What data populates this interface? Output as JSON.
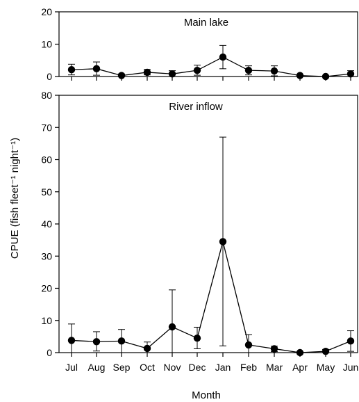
{
  "chart_data": [
    {
      "type": "line",
      "title": "Main lake",
      "xlabel": "",
      "ylabel": "",
      "categories": [
        "Jul",
        "Aug",
        "Sep",
        "Oct",
        "Nov",
        "Dec",
        "Jan",
        "Feb",
        "Mar",
        "Apr",
        "May",
        "Jun"
      ],
      "ylim": [
        0,
        20
      ],
      "yticks": [
        0,
        10,
        20
      ],
      "series": [
        {
          "name": "",
          "values": [
            2.1,
            2.4,
            0.3,
            1.3,
            0.8,
            1.9,
            6.0,
            1.9,
            1.7,
            0.3,
            0.0,
            0.8
          ],
          "error_upper": [
            3.8,
            4.5,
            0.8,
            2.2,
            1.8,
            3.5,
            9.6,
            3.3,
            3.3,
            0.6,
            0.2,
            1.8
          ],
          "error_lower": [
            0.5,
            0.4,
            0.0,
            0.5,
            0.0,
            0.4,
            2.4,
            0.5,
            0.2,
            0.0,
            0.0,
            0.0
          ]
        }
      ],
      "grid": false
    },
    {
      "type": "line",
      "title": "River inflow",
      "xlabel": "Month",
      "ylabel": "CPUE (fish fleet⁻¹ night⁻¹)",
      "categories": [
        "Jul",
        "Aug",
        "Sep",
        "Oct",
        "Nov",
        "Dec",
        "Jan",
        "Feb",
        "Mar",
        "Apr",
        "May",
        "Jun"
      ],
      "ylim": [
        0,
        80
      ],
      "yticks": [
        0,
        10,
        20,
        30,
        40,
        50,
        60,
        70,
        80
      ],
      "series": [
        {
          "name": "",
          "values": [
            3.8,
            3.4,
            3.6,
            1.3,
            8.0,
            4.5,
            34.5,
            2.4,
            1.2,
            0.0,
            0.4,
            3.6
          ],
          "error_upper": [
            8.9,
            6.5,
            7.2,
            3.3,
            19.5,
            7.9,
            67.0,
            5.6,
            2.0,
            0.3,
            1.0,
            6.8
          ],
          "error_lower": [
            0.0,
            0.5,
            0.0,
            0.0,
            0.0,
            1.2,
            2.1,
            0.0,
            0.3,
            0.0,
            0.0,
            0.4
          ]
        }
      ],
      "grid": false
    }
  ]
}
